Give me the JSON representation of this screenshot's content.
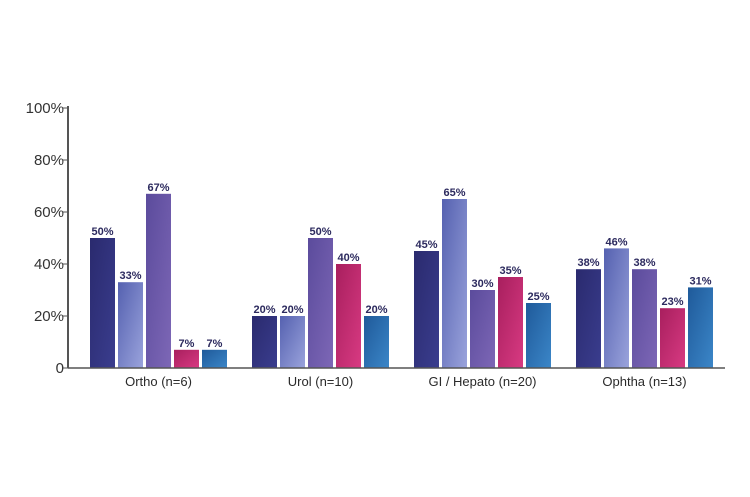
{
  "chart_data": {
    "type": "bar",
    "categories": [
      "Ortho (n=6)",
      "Urol (n=10)",
      "GI / Hepato (n=20)",
      "Ophtha (n=13)"
    ],
    "series": [
      {
        "values": [
          50,
          20,
          45,
          38
        ]
      },
      {
        "values": [
          33,
          20,
          65,
          46
        ]
      },
      {
        "values": [
          67,
          50,
          30,
          38
        ]
      },
      {
        "values": [
          7,
          40,
          35,
          23
        ]
      },
      {
        "values": [
          7,
          20,
          25,
          31
        ]
      }
    ],
    "data_labels": [
      [
        "50%",
        "33%",
        "67%",
        "7%",
        "7%"
      ],
      [
        "20%",
        "20%",
        "50%",
        "40%",
        "20%"
      ],
      [
        "45%",
        "65%",
        "30%",
        "35%",
        "25%"
      ],
      [
        "38%",
        "46%",
        "38%",
        "23%",
        "31%"
      ]
    ],
    "y_ticks": [
      {
        "value": 0,
        "label": "0"
      },
      {
        "value": 20,
        "label": "20%"
      },
      {
        "value": 40,
        "label": "40%"
      },
      {
        "value": 60,
        "label": "60%"
      },
      {
        "value": 80,
        "label": "80%"
      },
      {
        "value": 100,
        "label": "100%"
      }
    ],
    "ylim": [
      0,
      100
    ],
    "grid": false,
    "legend": "none",
    "colors": {
      "series": [
        [
          "#2a2a6e",
          "#3a3d8e"
        ],
        [
          "#5561b0",
          "#9aa3dc"
        ],
        [
          "#5b4b9c",
          "#7d67b6"
        ],
        [
          "#a81f5e",
          "#d83a82"
        ],
        [
          "#1f5a9a",
          "#3b86c8"
        ]
      ],
      "axis": "#555555",
      "data_label": "#2c2a5e"
    }
  }
}
